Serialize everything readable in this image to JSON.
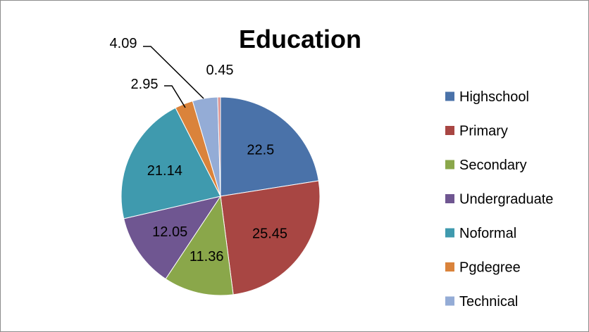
{
  "chart_data": {
    "type": "pie",
    "title": "Education",
    "legend_position": "right",
    "categories": [
      "Highschool",
      "Primary",
      "Secondary",
      "Undergraduate",
      "Noformal",
      "Pgdegree",
      "Technical",
      ""
    ],
    "values": [
      22.5,
      25.45,
      11.36,
      12.05,
      21.14,
      2.95,
      4.09,
      0.45
    ],
    "colors": [
      "#4A72A9",
      "#A84643",
      "#8AA74A",
      "#6F5691",
      "#3F9AAE",
      "#DA833B",
      "#94ACD6",
      "#D98F8D"
    ],
    "data_labels": [
      "22.5",
      "25.45",
      "11.36",
      "12.05",
      "21.14",
      "2.95",
      "4.09",
      "0.45"
    ],
    "legend_entries": [
      "Highschool",
      "Primary",
      "Secondary",
      "Undergraduate",
      "Noformal",
      "Pgdegree",
      "Technical"
    ]
  }
}
